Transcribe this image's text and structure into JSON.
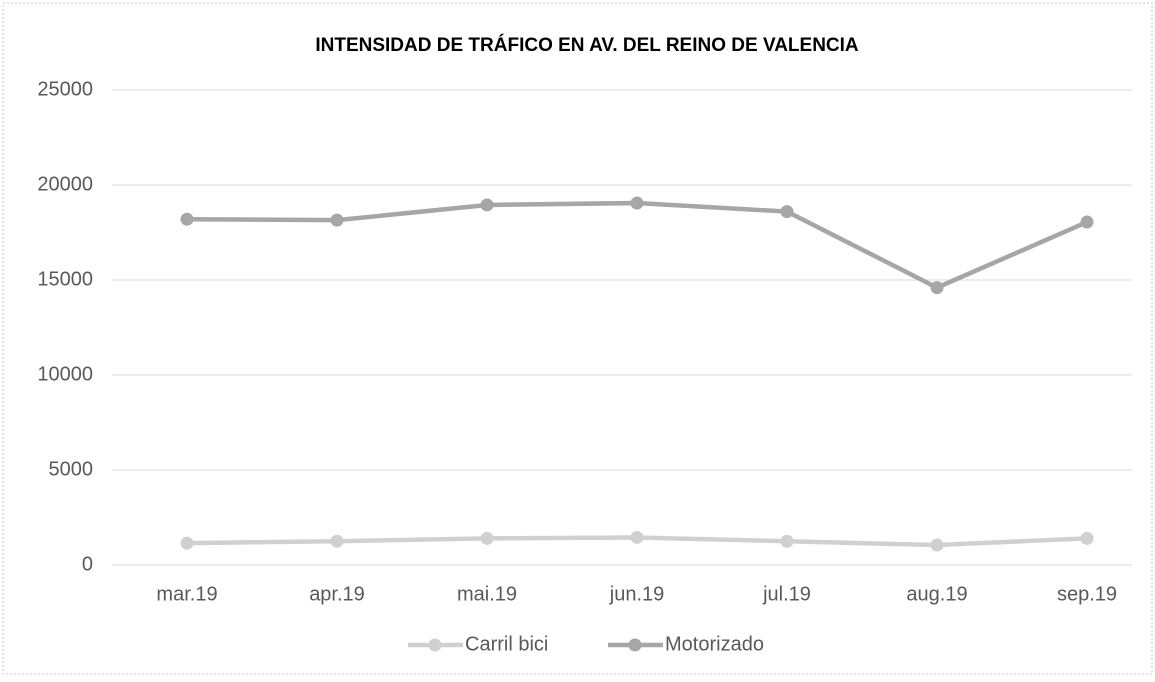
{
  "chart_data": {
    "type": "line",
    "title": "INTENSIDAD DE TRÁFICO EN AV. DEL REINO DE VALENCIA",
    "categories": [
      "mar.19",
      "apr.19",
      "mai.19",
      "jun.19",
      "jul.19",
      "aug.19",
      "sep.19"
    ],
    "series": [
      {
        "name": "Carril bici",
        "color": "#d0d0d0",
        "values": [
          1150,
          1250,
          1400,
          1450,
          1250,
          1050,
          1400
        ]
      },
      {
        "name": "Motorizado",
        "color": "#a6a6a6",
        "values": [
          18200,
          18150,
          18950,
          19050,
          18600,
          14600,
          18050
        ]
      }
    ],
    "ylim": [
      0,
      25000
    ],
    "yticks": [
      0,
      5000,
      10000,
      15000,
      20000,
      25000
    ],
    "grid": true,
    "legend": "bottom"
  }
}
